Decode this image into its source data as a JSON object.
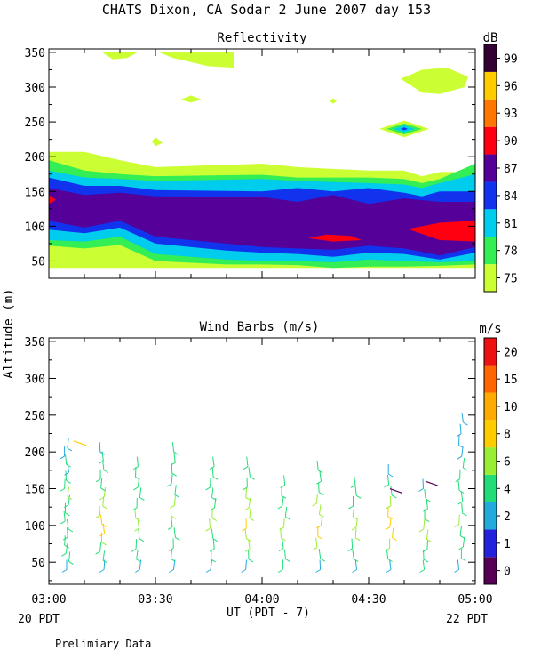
{
  "header": {
    "title": "CHATS Dixon, CA  Sodar    2 June 2007   day 153"
  },
  "footer": {
    "start_note": "20 PDT",
    "end_note": "22 PDT",
    "preliminary": "Prelimiary Data"
  },
  "colors": {
    "background": "#ffffff",
    "axis": "#000000"
  },
  "chart_data": [
    {
      "type": "heatmap",
      "title": "Reflectivity",
      "xlabel": "",
      "ylabel": "",
      "x_ticks": [
        "03:00",
        "03:30",
        "04:00",
        "04:30",
        "05:00"
      ],
      "y_ticks": [
        50,
        100,
        150,
        200,
        250,
        300,
        350
      ],
      "ylim": [
        25,
        355
      ],
      "xlim_minutes_after_0300": [
        0,
        120
      ],
      "colorbar": {
        "unit": "dB",
        "labels": [
          "75",
          "78",
          "81",
          "84",
          "87",
          "90",
          "93",
          "96",
          "99"
        ],
        "colors": [
          "#ccff33",
          "#33ee55",
          "#00ccee",
          "#1133ee",
          "#550099",
          "#ff0011",
          "#ff7700",
          "#ffcc00",
          "#330033"
        ]
      },
      "layers": [
        {
          "level": "75",
          "color": "#ccff33",
          "lower": [
            [
              0,
              40
            ],
            [
              120,
              40
            ]
          ],
          "upper": [
            [
              0,
              207
            ],
            [
              10,
              207
            ],
            [
              20,
              195
            ],
            [
              30,
              185
            ],
            [
              60,
              190
            ],
            [
              70,
              185
            ],
            [
              90,
              180
            ],
            [
              100,
              180
            ],
            [
              105,
              172
            ],
            [
              110,
              178
            ],
            [
              120,
              178
            ]
          ]
        },
        {
          "level": "78",
          "color": "#33ee55",
          "lower": [
            [
              0,
              72
            ],
            [
              10,
              68
            ],
            [
              20,
              73
            ],
            [
              30,
              50
            ],
            [
              50,
              45
            ],
            [
              60,
              45
            ],
            [
              70,
              44
            ],
            [
              80,
              40
            ],
            [
              90,
              42
            ],
            [
              100,
              42
            ],
            [
              110,
              43
            ],
            [
              120,
              45
            ]
          ],
          "upper": [
            [
              0,
              195
            ],
            [
              10,
              180
            ],
            [
              20,
              175
            ],
            [
              30,
              172
            ],
            [
              60,
              174
            ],
            [
              70,
              170
            ],
            [
              90,
              170
            ],
            [
              100,
              168
            ],
            [
              105,
              162
            ],
            [
              110,
              168
            ],
            [
              120,
              190
            ]
          ]
        },
        {
          "level": "81",
          "color": "#00ccee",
          "lower": [
            [
              0,
              80
            ],
            [
              10,
              78
            ],
            [
              20,
              85
            ],
            [
              30,
              60
            ],
            [
              50,
              52
            ],
            [
              60,
              50
            ],
            [
              70,
              50
            ],
            [
              80,
              48
            ],
            [
              90,
              52
            ],
            [
              100,
              50
            ],
            [
              110,
              48
            ],
            [
              120,
              50
            ]
          ],
          "upper": [
            [
              0,
              180
            ],
            [
              10,
              170
            ],
            [
              20,
              168
            ],
            [
              30,
              165
            ],
            [
              60,
              168
            ],
            [
              70,
              165
            ],
            [
              90,
              162
            ],
            [
              100,
              160
            ],
            [
              105,
              155
            ],
            [
              110,
              162
            ],
            [
              120,
              175
            ]
          ]
        },
        {
          "level": "84",
          "color": "#1133ee",
          "lower": [
            [
              0,
              95
            ],
            [
              10,
              90
            ],
            [
              20,
              98
            ],
            [
              30,
              75
            ],
            [
              50,
              65
            ],
            [
              60,
              62
            ],
            [
              70,
              60
            ],
            [
              80,
              56
            ],
            [
              90,
              62
            ],
            [
              100,
              60
            ],
            [
              110,
              52
            ],
            [
              120,
              62
            ]
          ],
          "upper": [
            [
              0,
              170
            ],
            [
              10,
              158
            ],
            [
              20,
              158
            ],
            [
              30,
              152
            ],
            [
              60,
              150
            ],
            [
              70,
              155
            ],
            [
              80,
              150
            ],
            [
              90,
              155
            ],
            [
              100,
              148
            ],
            [
              105,
              143
            ],
            [
              110,
              150
            ],
            [
              120,
              150
            ]
          ]
        },
        {
          "level": "87",
          "color": "#550099",
          "lower": [
            [
              0,
              108
            ],
            [
              10,
              98
            ],
            [
              20,
              108
            ],
            [
              30,
              85
            ],
            [
              50,
              75
            ],
            [
              60,
              70
            ],
            [
              70,
              68
            ],
            [
              80,
              66
            ],
            [
              90,
              72
            ],
            [
              100,
              68
            ],
            [
              110,
              58
            ],
            [
              120,
              70
            ]
          ],
          "upper": [
            [
              0,
              155
            ],
            [
              10,
              145
            ],
            [
              20,
              148
            ],
            [
              30,
              143
            ],
            [
              60,
              142
            ],
            [
              70,
              135
            ],
            [
              80,
              145
            ],
            [
              90,
              132
            ],
            [
              100,
              140
            ],
            [
              110,
              135
            ],
            [
              120,
              135
            ]
          ]
        }
      ],
      "blobs": [
        {
          "level": "75",
          "color": "#ccff33",
          "points": [
            [
              15,
              350
            ],
            [
              18,
              340
            ],
            [
              22,
              342
            ],
            [
              25,
              350
            ]
          ]
        },
        {
          "level": "75",
          "color": "#ccff33",
          "points": [
            [
              31,
              350
            ],
            [
              35,
              342
            ],
            [
              45,
              330
            ],
            [
              52,
              328
            ],
            [
              52,
              350
            ]
          ]
        },
        {
          "level": "75",
          "color": "#ccff33",
          "points": [
            [
              37,
              282
            ],
            [
              40,
              288
            ],
            [
              43,
              282
            ],
            [
              40,
              278
            ]
          ]
        },
        {
          "level": "75",
          "color": "#ccff33",
          "points": [
            [
              29,
              222
            ],
            [
              30,
              228
            ],
            [
              32,
              220
            ],
            [
              30,
              215
            ]
          ]
        },
        {
          "level": "75",
          "color": "#ccff33",
          "points": [
            [
              79,
              280
            ],
            [
              80,
              284
            ],
            [
              81,
              280
            ],
            [
              80,
              276
            ]
          ]
        },
        {
          "level": "75",
          "color": "#ccff33",
          "points": [
            [
              99,
              312
            ],
            [
              105,
              325
            ],
            [
              112,
              328
            ],
            [
              118,
              315
            ],
            [
              117,
              300
            ],
            [
              110,
              290
            ],
            [
              105,
              292
            ]
          ]
        },
        {
          "level": "75",
          "color": "#ccff33",
          "points": [
            [
              93,
              240
            ],
            [
              100,
              252
            ],
            [
              107,
              240
            ],
            [
              100,
              228
            ]
          ]
        },
        {
          "level": "78",
          "color": "#33ee55",
          "points": [
            [
              95,
              240
            ],
            [
              100,
              248
            ],
            [
              105,
              240
            ],
            [
              100,
              232
            ]
          ]
        },
        {
          "level": "81",
          "color": "#00ccee",
          "points": [
            [
              97,
              240
            ],
            [
              100,
              245
            ],
            [
              103,
              240
            ],
            [
              100,
              235
            ]
          ]
        },
        {
          "level": "84",
          "color": "#1133ee",
          "points": [
            [
              99,
              240
            ],
            [
              100,
              242
            ],
            [
              101,
              240
            ],
            [
              100,
              238
            ]
          ]
        },
        {
          "level": "87",
          "color": "#550099",
          "points": [
            [
              85,
              105
            ],
            [
              88,
              110
            ],
            [
              92,
              104
            ],
            [
              88,
              98
            ]
          ]
        },
        {
          "level": "90",
          "color": "#ff0011",
          "points": [
            [
              0,
              145
            ],
            [
              2,
              138
            ],
            [
              0,
              132
            ]
          ]
        },
        {
          "level": "90",
          "color": "#ff0011",
          "points": [
            [
              73,
              83
            ],
            [
              78,
              88
            ],
            [
              85,
              86
            ],
            [
              88,
              80
            ],
            [
              80,
              78
            ]
          ]
        },
        {
          "level": "90",
          "color": "#ff0011",
          "points": [
            [
              101,
              96
            ],
            [
              110,
              105
            ],
            [
              120,
              108
            ],
            [
              120,
              78
            ],
            [
              110,
              80
            ]
          ]
        }
      ]
    },
    {
      "type": "scatter",
      "title": "Wind Barbs (m/s)",
      "ylabel": "Altitude (m)",
      "xlabel": "UT  (PDT - 7)",
      "x_ticks": [
        "03:00",
        "03:30",
        "04:00",
        "04:30",
        "05:00"
      ],
      "y_ticks": [
        50,
        100,
        150,
        200,
        250,
        300,
        350
      ],
      "ylim": [
        20,
        355
      ],
      "xlim_minutes_after_0300": [
        0,
        120
      ],
      "colorbar": {
        "unit": "m/s",
        "labels": [
          "0",
          "1",
          "2",
          "4",
          "6",
          "8",
          "10",
          "15",
          "20"
        ],
        "colors": [
          "#550055",
          "#2222dd",
          "#22aadd",
          "#22dd77",
          "#99ee33",
          "#ffcc00",
          "#ffaa00",
          "#ff6600",
          "#ee1111"
        ]
      },
      "profiles": [
        {
          "time": 5,
          "top": 205,
          "base_color": 4,
          "speeds": [
            3,
            5,
            4,
            4,
            4,
            5,
            5,
            5,
            5,
            6,
            5,
            4,
            3,
            4,
            3,
            2
          ]
        },
        {
          "time": 15,
          "top": 200,
          "base_color": 5,
          "speeds": [
            2,
            4,
            5,
            6,
            8,
            8,
            7,
            6,
            6,
            5,
            5,
            4,
            4,
            3
          ]
        },
        {
          "time": 25,
          "top": 180,
          "base_color": 5,
          "speeds": [
            3,
            4,
            5,
            5,
            6,
            6,
            5,
            5,
            5,
            4,
            4
          ]
        },
        {
          "time": 35,
          "top": 200,
          "base_color": 5,
          "speeds": [
            3,
            4,
            5,
            5,
            5,
            6,
            6,
            5,
            5,
            5,
            4,
            4
          ]
        },
        {
          "time": 46,
          "top": 180,
          "base_color": 5,
          "speeds": [
            3,
            4,
            5,
            5,
            6,
            6,
            5,
            5,
            5,
            4,
            4
          ]
        },
        {
          "time": 56,
          "top": 180,
          "base_color": 5,
          "speeds": [
            3,
            5,
            6,
            6,
            8,
            7,
            6,
            6,
            5,
            5,
            4
          ]
        },
        {
          "time": 66,
          "top": 155,
          "base_color": 5,
          "speeds": [
            4,
            5,
            5,
            6,
            6,
            5,
            5,
            4,
            4
          ]
        },
        {
          "time": 76,
          "top": 175,
          "base_color": 5,
          "speeds": [
            3,
            5,
            6,
            8,
            8,
            7,
            6,
            5,
            5,
            4
          ]
        },
        {
          "time": 86,
          "top": 155,
          "base_color": 5,
          "speeds": [
            3,
            4,
            5,
            6,
            6,
            6,
            5,
            4,
            4
          ]
        },
        {
          "time": 96,
          "top": 170,
          "base_color": 5,
          "speeds": [
            3,
            5,
            6,
            8,
            8,
            8,
            6,
            5,
            4,
            3
          ]
        },
        {
          "time": 106,
          "top": 150,
          "base_color": 5,
          "speeds": [
            4,
            5,
            5,
            6,
            6,
            5,
            4,
            4,
            2
          ]
        },
        {
          "time": 116,
          "top": 240,
          "base_color": 5,
          "speeds": [
            3,
            4,
            5,
            5,
            6,
            5,
            5,
            5,
            4,
            4,
            3,
            3,
            3,
            3
          ]
        }
      ],
      "isolated": [
        {
          "time": 7,
          "alt": 215,
          "speed": 8
        },
        {
          "time": 96,
          "alt": 150,
          "speed": 0
        },
        {
          "time": 106,
          "alt": 160,
          "speed": 0
        }
      ]
    }
  ]
}
